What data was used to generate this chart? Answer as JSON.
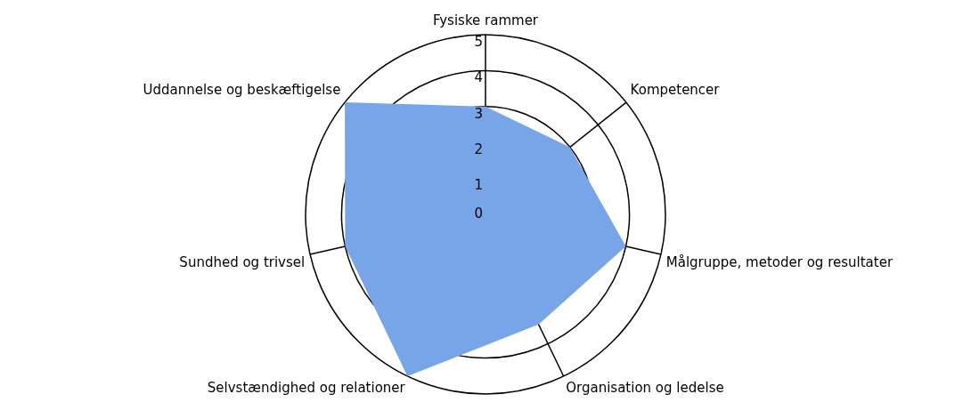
{
  "chart_data": {
    "type": "radar",
    "categories": [
      "Fysiske rammer",
      "Kompetencer",
      "Målgruppe, metoder og resultater",
      "Organisation og ledelse",
      "Selvstændighed og relationer",
      "Sundhed og trivsel",
      "Uddannelse og beskæftigelse"
    ],
    "series": [
      {
        "color": "#77a5e8",
        "values": [
          3,
          3,
          4,
          3.4,
          5,
          4,
          5
        ]
      }
    ],
    "ylim": [
      0,
      5
    ],
    "yticks": [
      0,
      1,
      2,
      3,
      4,
      5
    ],
    "grid": true,
    "legend": false
  }
}
